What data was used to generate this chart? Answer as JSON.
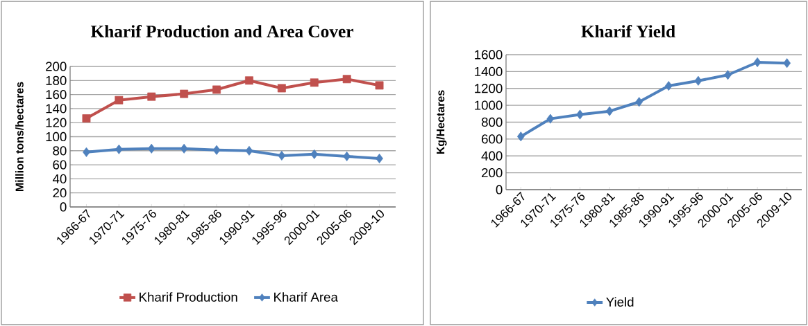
{
  "chart_data": [
    {
      "type": "line",
      "title": "Kharif Production and Area Cover",
      "ylabel": "Million tons/hectares",
      "categories": [
        "1966-67",
        "1970-71",
        "1975-76",
        "1980-81",
        "1985-86",
        "1990-91",
        "1995-96",
        "2000-01",
        "2005-06",
        "2009-10"
      ],
      "series": [
        {
          "name": "Kharif Production",
          "color": "#c0504d",
          "marker": "square",
          "values": [
            126,
            152,
            157,
            161,
            167,
            180,
            169,
            177,
            182,
            173
          ]
        },
        {
          "name": "Kharif Area",
          "color": "#4f81bd",
          "marker": "diamond",
          "values": [
            78,
            82,
            83,
            83,
            81,
            80,
            73,
            75,
            72,
            69
          ]
        }
      ],
      "ylim": [
        0,
        200
      ],
      "yticks": [
        0,
        20,
        40,
        60,
        80,
        100,
        120,
        140,
        160,
        180,
        200
      ],
      "grid": "y",
      "legend": "bottom"
    },
    {
      "type": "line",
      "title": "Kharif  Yield",
      "ylabel": "Kg/Hectares",
      "categories": [
        "1966-67",
        "1970-71",
        "1975-76",
        "1980-81",
        "1985-86",
        "1990-91",
        "1995-96",
        "2000-01",
        "2005-06",
        "2009-10"
      ],
      "series": [
        {
          "name": "Yield",
          "color": "#4f81bd",
          "marker": "diamond",
          "values": [
            630,
            840,
            890,
            930,
            1040,
            1230,
            1290,
            1360,
            1510,
            1500
          ]
        }
      ],
      "ylim": [
        0,
        1600
      ],
      "yticks": [
        0,
        200,
        400,
        600,
        800,
        1000,
        1200,
        1400,
        1600
      ],
      "grid": "y",
      "legend": "bottom"
    }
  ]
}
